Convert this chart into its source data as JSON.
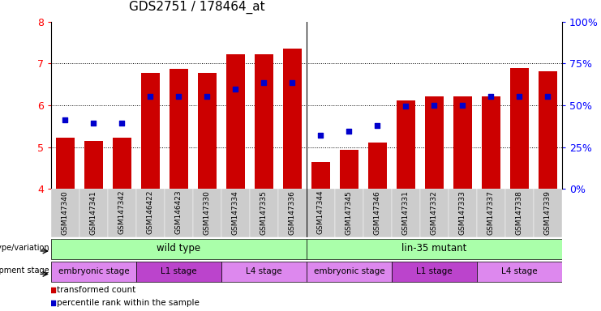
{
  "title": "GDS2751 / 178464_at",
  "samples": [
    "GSM147340",
    "GSM147341",
    "GSM147342",
    "GSM146422",
    "GSM146423",
    "GSM147330",
    "GSM147334",
    "GSM147335",
    "GSM147336",
    "GSM147344",
    "GSM147345",
    "GSM147346",
    "GSM147331",
    "GSM147332",
    "GSM147333",
    "GSM147337",
    "GSM147338",
    "GSM147339"
  ],
  "bar_values": [
    5.22,
    5.15,
    5.22,
    6.77,
    6.88,
    6.77,
    7.22,
    7.22,
    7.35,
    4.65,
    4.94,
    5.1,
    6.12,
    6.22,
    6.22,
    6.22,
    6.9,
    6.82
  ],
  "dot_values": [
    5.65,
    5.58,
    5.58,
    6.22,
    6.22,
    6.22,
    6.38,
    6.55,
    6.55,
    5.28,
    5.38,
    5.52,
    5.98,
    6.0,
    6.0,
    6.22,
    6.22,
    6.22
  ],
  "bar_color": "#cc0000",
  "dot_color": "#0000cc",
  "ymin": 4.0,
  "ymax": 8.0,
  "yticks": [
    4,
    5,
    6,
    7,
    8
  ],
  "right_tick_positions": [
    4,
    5,
    6,
    7,
    8
  ],
  "right_tick_labels": [
    "0%",
    "25%",
    "50%",
    "75%",
    "100%"
  ],
  "bar_width": 0.65,
  "dot_size": 22,
  "genotype_groups": [
    {
      "label": "wild type",
      "start": 0,
      "end": 9
    },
    {
      "label": "lin-35 mutant",
      "start": 9,
      "end": 18
    }
  ],
  "stage_groups": [
    {
      "label": "embryonic stage",
      "start": 0,
      "end": 3,
      "light": true
    },
    {
      "label": "L1 stage",
      "start": 3,
      "end": 6,
      "light": false
    },
    {
      "label": "L4 stage",
      "start": 6,
      "end": 9,
      "light": true
    },
    {
      "label": "embryonic stage",
      "start": 9,
      "end": 12,
      "light": true
    },
    {
      "label": "L1 stage",
      "start": 12,
      "end": 15,
      "light": false
    },
    {
      "label": "L4 stage",
      "start": 15,
      "end": 18,
      "light": true
    }
  ],
  "stage_color_light": "#dd88ee",
  "stage_color_dark": "#bb44cc",
  "genotype_color": "#aaffaa",
  "xtick_bg": "#cccccc"
}
